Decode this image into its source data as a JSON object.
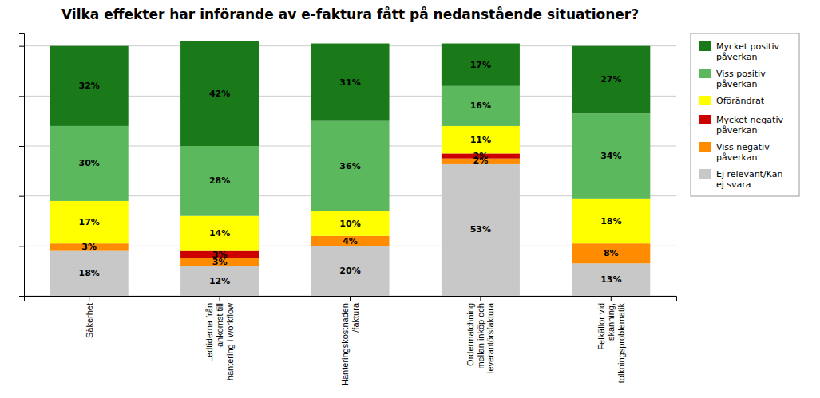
{
  "chart_data": {
    "type": "bar",
    "stacked": true,
    "title": "Vilka effekter har införande av e-faktura fått på nedanstående situationer?",
    "categories": [
      "Säkerhet",
      "Ledtiderna från\nankomst till\nhantering i workflow",
      "Hanteringskostnaden\n/faktura",
      "Ordermatchning\nmellan inköp och\nleverantörsfaktura",
      "Felkällor vid\nskanning,\ntolkningsproblematik"
    ],
    "series": [
      {
        "name": "Ej relevant/Kan\nej svara",
        "color": "#c8c8c8",
        "values": [
          18,
          12,
          20,
          53,
          13
        ],
        "value_labels": [
          "18%",
          "12%",
          "20%",
          "53%",
          "13%"
        ]
      },
      {
        "name": "Viss negativ\npåverkan",
        "color": "#ff8c00",
        "values": [
          3,
          3,
          4,
          2,
          8
        ],
        "value_labels": [
          "3%",
          "3%",
          "4%",
          "2%",
          "8%"
        ]
      },
      {
        "name": "Mycket negativ\npåverkan",
        "color": "#cc0000",
        "values": [
          0,
          3,
          0,
          2,
          0
        ],
        "value_labels": [
          null,
          "3%",
          null,
          "2%",
          null
        ]
      },
      {
        "name": "Oförändrat",
        "color": "#ffff00",
        "values": [
          17,
          14,
          10,
          11,
          18
        ],
        "value_labels": [
          "17%",
          "14%",
          "10%",
          "11%",
          "18%"
        ]
      },
      {
        "name": "Viss positiv\npåverkan",
        "color": "#5cb85c",
        "values": [
          30,
          28,
          36,
          16,
          34
        ],
        "value_labels": [
          "30%",
          "28%",
          "36%",
          "16%",
          "34%"
        ]
      },
      {
        "name": "Mycket positiv\npåverkan",
        "color": "#1a7a1a",
        "values": [
          32,
          42,
          31,
          17,
          27
        ],
        "value_labels": [
          "32%",
          "42%",
          "31%",
          "17%",
          "27%"
        ]
      }
    ],
    "ylim": [
      0,
      105
    ],
    "yticks": [
      0,
      20,
      40,
      60,
      80,
      100
    ],
    "tick_labels": "x",
    "grid": true,
    "data_labels": true,
    "legend": "right"
  }
}
